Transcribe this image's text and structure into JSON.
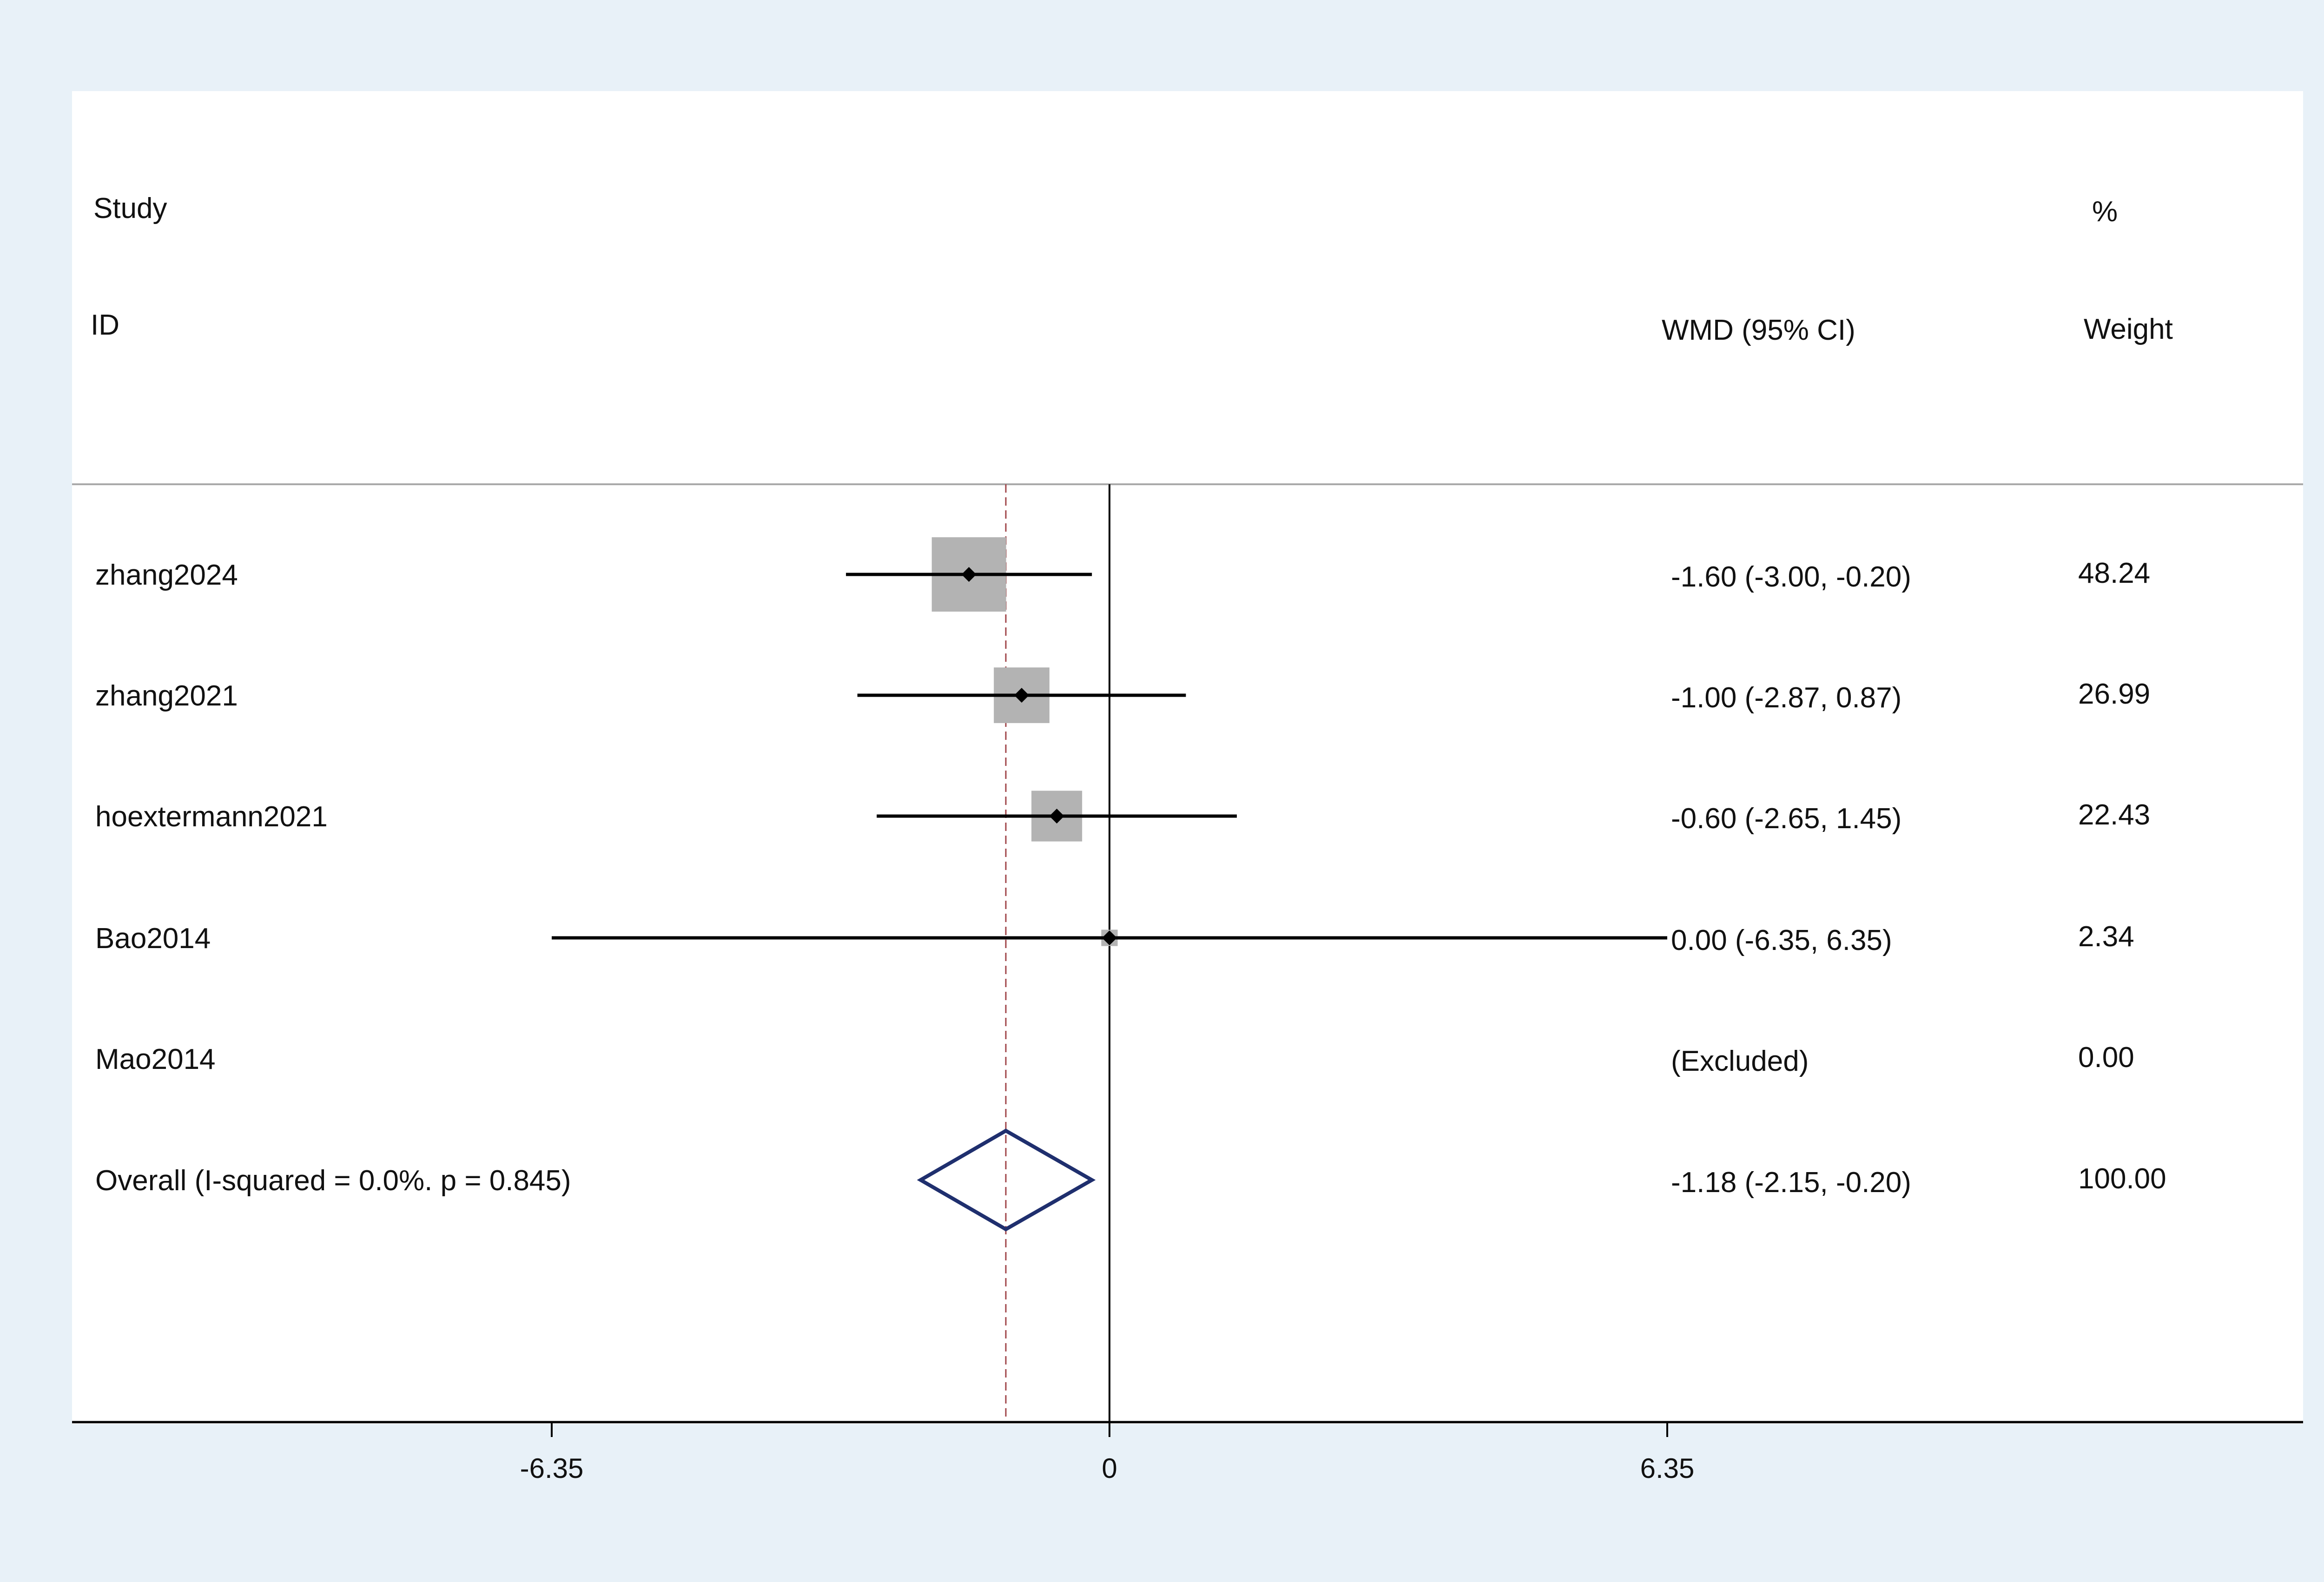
{
  "header": {
    "study_label": "Study",
    "id_label": "ID",
    "percent_label": "%",
    "wmd_label": "WMD (95% CI)",
    "weight_label": "Weight"
  },
  "chart_data": {
    "type": "forest",
    "xlabel": "",
    "ylabel": "",
    "xlim": [
      -6.35,
      6.35
    ],
    "x_ticks": [
      -6.35,
      0,
      6.35
    ],
    "x_tick_labels": [
      "-6.35",
      "0",
      "6.35"
    ],
    "reference_line": 0,
    "overall_line": -1.18,
    "studies": [
      {
        "id": "zhang2024",
        "estimate": -1.6,
        "lower": -3.0,
        "upper": -0.2,
        "ci_text": "-1.60 (-3.00, -0.20)",
        "weight": 48.24,
        "weight_text": "48.24"
      },
      {
        "id": "zhang2021",
        "estimate": -1.0,
        "lower": -2.87,
        "upper": 0.87,
        "ci_text": "-1.00 (-2.87, 0.87)",
        "weight": 26.99,
        "weight_text": "26.99"
      },
      {
        "id": "hoextermann2021",
        "estimate": -0.6,
        "lower": -2.65,
        "upper": 1.45,
        "ci_text": "-0.60 (-2.65, 1.45)",
        "weight": 22.43,
        "weight_text": "22.43"
      },
      {
        "id": "Bao2014",
        "estimate": 0.0,
        "lower": -6.35,
        "upper": 6.35,
        "ci_text": "0.00 (-6.35, 6.35)",
        "weight": 2.34,
        "weight_text": "2.34"
      },
      {
        "id": "Mao2014",
        "estimate": null,
        "lower": null,
        "upper": null,
        "ci_text": "(Excluded)",
        "weight": 0.0,
        "weight_text": "0.00"
      }
    ],
    "overall": {
      "label": "Overall  (I-squared = 0.0%. p = 0.845)",
      "estimate": -1.18,
      "lower": -2.15,
      "upper": -0.2,
      "ci_text": "-1.18 (-2.15, -0.20)",
      "weight_text": "100.00"
    },
    "colors": {
      "square": "#b3b3b3",
      "ci_line": "#000000",
      "overall_diamond": "#1f2f6e",
      "overall_line": "#a0464a",
      "axis": "#000000",
      "divider": "#aaaaaa"
    }
  }
}
